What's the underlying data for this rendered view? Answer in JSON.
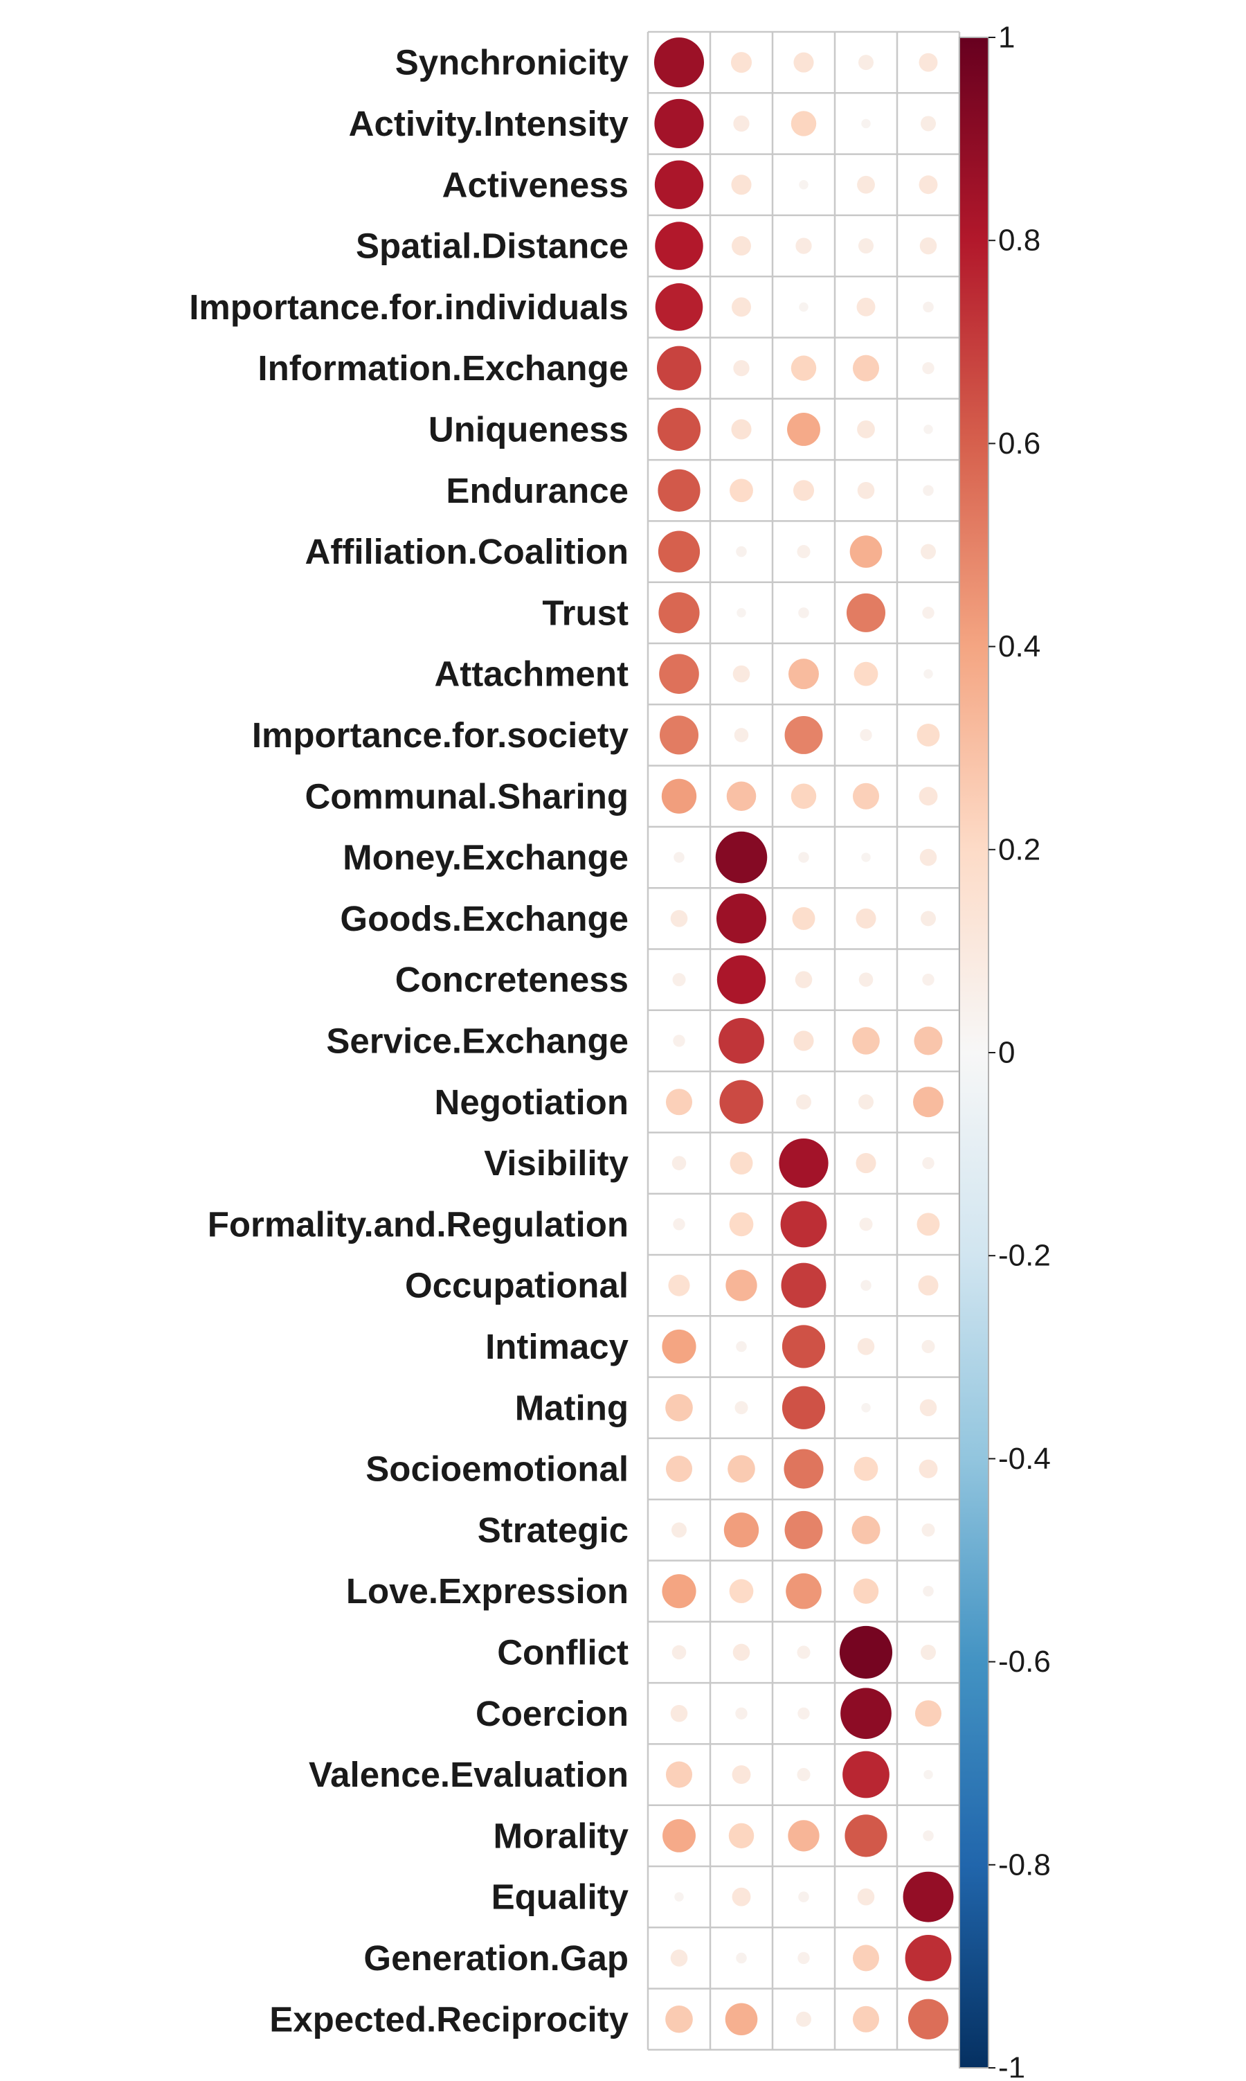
{
  "chart_data": {
    "type": "heatmap",
    "title": "",
    "xlabel": "",
    "ylabel": "",
    "shape": "circle",
    "columns": 5,
    "rows": [
      "Synchronicity",
      "Activity.Intensity",
      "Activeness",
      "Spatial.Distance",
      "Importance.for.individuals",
      "Information.Exchange",
      "Uniqueness",
      "Endurance",
      "Affiliation.Coalition",
      "Trust",
      "Attachment",
      "Importance.for.society",
      "Communal.Sharing",
      "Money.Exchange",
      "Goods.Exchange",
      "Concreteness",
      "Service.Exchange",
      "Negotiation",
      "Visibility",
      "Formality.and.Regulation",
      "Occupational",
      "Intimacy",
      "Mating",
      "Socioemotional",
      "Strategic",
      "Love.Expression",
      "Conflict",
      "Coercion",
      "Valence.Evaluation",
      "Morality",
      "Equality",
      "Generation.Gap",
      "Expected.Reciprocity"
    ],
    "values": [
      [
        0.86,
        0.15,
        0.14,
        0.08,
        0.12
      ],
      [
        0.84,
        0.09,
        0.22,
        0.03,
        0.08
      ],
      [
        0.82,
        0.14,
        0.03,
        0.11,
        0.12
      ],
      [
        0.8,
        0.13,
        0.09,
        0.08,
        0.1
      ],
      [
        0.78,
        0.13,
        0.03,
        0.12,
        0.04
      ],
      [
        0.68,
        0.09,
        0.22,
        0.24,
        0.05
      ],
      [
        0.64,
        0.14,
        0.38,
        0.11,
        0.03
      ],
      [
        0.62,
        0.19,
        0.15,
        0.1,
        0.04
      ],
      [
        0.6,
        0.04,
        0.06,
        0.36,
        0.08
      ],
      [
        0.58,
        0.03,
        0.04,
        0.52,
        0.05
      ],
      [
        0.55,
        0.1,
        0.32,
        0.2,
        0.03
      ],
      [
        0.52,
        0.07,
        0.5,
        0.05,
        0.18
      ],
      [
        0.42,
        0.3,
        0.22,
        0.24,
        0.12
      ],
      [
        0.04,
        0.92,
        0.04,
        0.03,
        0.1
      ],
      [
        0.1,
        0.86,
        0.18,
        0.14,
        0.08
      ],
      [
        0.06,
        0.82,
        0.1,
        0.07,
        0.05
      ],
      [
        0.05,
        0.72,
        0.14,
        0.26,
        0.28
      ],
      [
        0.24,
        0.66,
        0.08,
        0.08,
        0.32
      ],
      [
        0.07,
        0.18,
        0.84,
        0.14,
        0.05
      ],
      [
        0.05,
        0.2,
        0.74,
        0.06,
        0.18
      ],
      [
        0.16,
        0.34,
        0.7,
        0.04,
        0.14
      ],
      [
        0.4,
        0.04,
        0.64,
        0.1,
        0.06
      ],
      [
        0.26,
        0.06,
        0.64,
        0.03,
        0.1
      ],
      [
        0.24,
        0.26,
        0.54,
        0.2,
        0.12
      ],
      [
        0.08,
        0.42,
        0.5,
        0.28,
        0.06
      ],
      [
        0.4,
        0.2,
        0.44,
        0.22,
        0.04
      ],
      [
        0.07,
        0.1,
        0.06,
        0.96,
        0.08
      ],
      [
        0.1,
        0.05,
        0.05,
        0.9,
        0.24
      ],
      [
        0.24,
        0.12,
        0.06,
        0.76,
        0.03
      ],
      [
        0.38,
        0.22,
        0.34,
        0.62,
        0.04
      ],
      [
        0.03,
        0.12,
        0.04,
        0.1,
        0.88
      ],
      [
        0.1,
        0.04,
        0.05,
        0.24,
        0.74
      ],
      [
        0.26,
        0.36,
        0.08,
        0.24,
        0.56
      ]
    ],
    "colorbar": {
      "range": [
        -1,
        1
      ],
      "tick_labels": [
        "1",
        "0.8",
        "0.6",
        "0.4",
        "0.2",
        "0",
        "-0.2",
        "-0.4",
        "-0.6",
        "-0.8",
        "-1"
      ],
      "colors": {
        "-1": "#053061",
        "-0.8": "#2166ac",
        "-0.6": "#4393c3",
        "-0.4": "#92c5de",
        "-0.2": "#d1e5f0",
        "0": "#f7f7f7",
        "0.2": "#fddbc7",
        "0.4": "#f4a582",
        "0.6": "#d6604d",
        "0.8": "#b2182b",
        "1": "#67001f"
      }
    },
    "grid": true,
    "legend": "right"
  }
}
